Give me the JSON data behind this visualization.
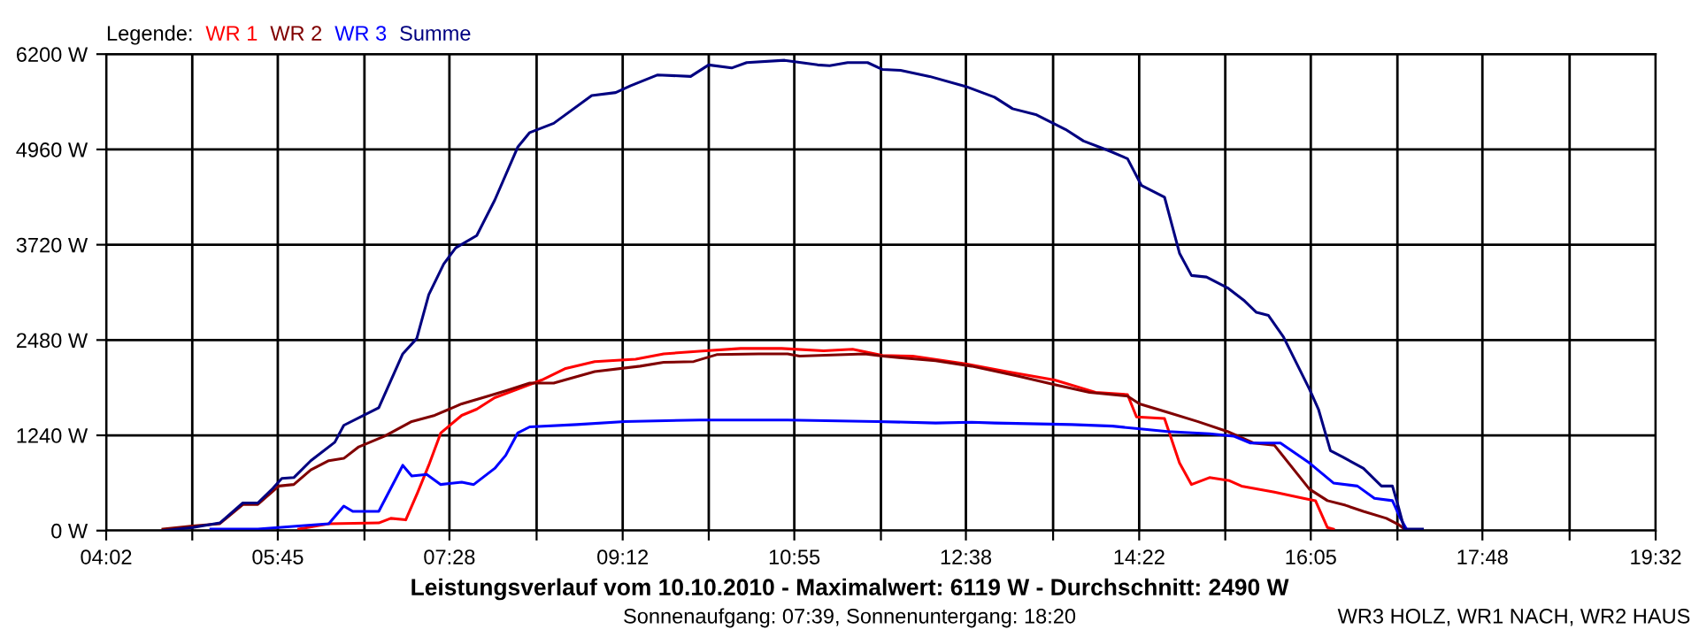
{
  "chart_data": {
    "type": "line",
    "title": "Leistungsverlauf vom 10.10.2010 - Maximalwert: 6119 W - Durchschnitt: 2490 W",
    "subtitle": "Sonnenaufgang: 07:39, Sonnenuntergang: 18:20",
    "legend_title": "Legende:",
    "annotations": [
      "WR3 HOLZ, WR1 NACH, WR2 HAUS"
    ],
    "legend": "top left",
    "grid": true,
    "marker": "none",
    "line_style": "solid",
    "xlim": [
      4.0333,
      19.5333
    ],
    "ylim": [
      0,
      6200
    ],
    "xticks": [
      {
        "value": 4.0333,
        "label": "04:02"
      },
      {
        "value": 4.8944,
        "label": null
      },
      {
        "value": 5.75,
        "label": "05:45"
      },
      {
        "value": 6.6167,
        "label": null
      },
      {
        "value": 7.4667,
        "label": "07:28"
      },
      {
        "value": 8.3389,
        "label": null
      },
      {
        "value": 9.2,
        "label": "09:12"
      },
      {
        "value": 10.0611,
        "label": null
      },
      {
        "value": 10.9167,
        "label": "10:55"
      },
      {
        "value": 11.7833,
        "label": null
      },
      {
        "value": 12.6333,
        "label": "12:38"
      },
      {
        "value": 13.5056,
        "label": null
      },
      {
        "value": 14.3667,
        "label": "14:22"
      },
      {
        "value": 15.2278,
        "label": null
      },
      {
        "value": 16.0833,
        "label": "16:05"
      },
      {
        "value": 16.95,
        "label": null
      },
      {
        "value": 17.8,
        "label": "17:48"
      },
      {
        "value": 18.6722,
        "label": null
      },
      {
        "value": 19.5333,
        "label": "19:32"
      }
    ],
    "yticks": [
      {
        "value": 0,
        "label": "0 W"
      },
      {
        "value": 1240,
        "label": "1240 W"
      },
      {
        "value": 2480,
        "label": "2480 W"
      },
      {
        "value": 3720,
        "label": "3720 W"
      },
      {
        "value": 4960,
        "label": "4960 W"
      },
      {
        "value": 6200,
        "label": "6200 W"
      }
    ],
    "series": [
      {
        "name": "WR 1",
        "color": "#ff0000",
        "x": [
          5.96,
          6.26,
          6.76,
          6.88,
          7.03,
          7.15,
          7.26,
          7.38,
          7.59,
          7.74,
          7.92,
          8.15,
          8.39,
          8.63,
          8.92,
          9.33,
          9.61,
          10.03,
          10.38,
          10.79,
          11.21,
          11.5,
          11.8,
          12.1,
          12.63,
          13.04,
          13.52,
          13.93,
          14.25,
          14.34,
          14.62,
          14.77,
          14.89,
          15.07,
          15.27,
          15.39,
          15.72,
          16.01,
          16.13,
          16.25,
          16.31
        ],
        "values": [
          20,
          90,
          100,
          160,
          140,
          500,
          850,
          1270,
          1500,
          1580,
          1730,
          1840,
          1960,
          2110,
          2200,
          2230,
          2300,
          2340,
          2370,
          2370,
          2340,
          2360,
          2280,
          2270,
          2170,
          2070,
          1960,
          1800,
          1770,
          1480,
          1460,
          880,
          600,
          690,
          650,
          580,
          500,
          420,
          390,
          40,
          20
        ]
      },
      {
        "name": "WR 2",
        "color": "#800000",
        "x": [
          4.6,
          4.9,
          5.17,
          5.4,
          5.55,
          5.76,
          5.91,
          6.08,
          6.26,
          6.41,
          6.56,
          6.82,
          7.09,
          7.32,
          7.59,
          7.8,
          8.03,
          8.27,
          8.51,
          8.92,
          9.375,
          9.61,
          9.91,
          10.14,
          10.56,
          10.85,
          10.97,
          11.62,
          11.8,
          12.33,
          12.69,
          13.16,
          13.52,
          13.87,
          14.25,
          14.37,
          14.65,
          14.95,
          15.25,
          15.51,
          15.72,
          16.07,
          16.25,
          16.43,
          16.61,
          16.84,
          16.96,
          17.02
        ],
        "values": [
          20,
          60,
          90,
          340,
          340,
          580,
          600,
          790,
          910,
          940,
          1090,
          1230,
          1420,
          1500,
          1650,
          1730,
          1820,
          1920,
          1920,
          2070,
          2140,
          2190,
          2200,
          2290,
          2300,
          2300,
          2270,
          2300,
          2270,
          2210,
          2140,
          2010,
          1900,
          1800,
          1750,
          1650,
          1540,
          1420,
          1290,
          1140,
          1110,
          540,
          390,
          330,
          250,
          160,
          80,
          20
        ]
      },
      {
        "name": "WR 3",
        "color": "#0000ff",
        "x": [
          5.08,
          5.55,
          5.96,
          6.26,
          6.41,
          6.5,
          6.76,
          7.0,
          7.09,
          7.24,
          7.38,
          7.59,
          7.71,
          7.92,
          8.03,
          8.15,
          8.27,
          8.74,
          9.22,
          9.97,
          10.85,
          11.74,
          12.33,
          12.69,
          12.92,
          13.69,
          14.1,
          14.4,
          14.65,
          15.07,
          15.31,
          15.48,
          15.78,
          16.07,
          16.31,
          16.55,
          16.72,
          16.9,
          16.98,
          17.04
        ],
        "values": [
          20,
          20,
          60,
          90,
          320,
          250,
          250,
          850,
          710,
          730,
          600,
          630,
          600,
          810,
          980,
          1270,
          1350,
          1380,
          1420,
          1440,
          1440,
          1420,
          1400,
          1410,
          1400,
          1380,
          1360,
          1320,
          1290,
          1260,
          1230,
          1140,
          1140,
          880,
          620,
          580,
          420,
          390,
          160,
          20
        ]
      },
      {
        "name": "Summe",
        "color": "#000080",
        "x": [
          4.6,
          4.9,
          5.17,
          5.4,
          5.55,
          5.7,
          5.79,
          5.91,
          6.08,
          6.32,
          6.41,
          6.61,
          6.76,
          7.0,
          7.14,
          7.26,
          7.41,
          7.53,
          7.74,
          7.92,
          8.15,
          8.27,
          8.51,
          8.89,
          9.13,
          9.28,
          9.55,
          9.88,
          10.06,
          10.29,
          10.44,
          10.82,
          11.15,
          11.27,
          11.45,
          11.65,
          11.8,
          11.98,
          12.27,
          12.63,
          12.92,
          13.1,
          13.34,
          13.63,
          13.81,
          14.05,
          14.25,
          14.39,
          14.62,
          14.77,
          14.89,
          15.04,
          15.25,
          15.42,
          15.54,
          15.66,
          15.81,
          16.07,
          16.16,
          16.28,
          16.4,
          16.61,
          16.79,
          16.9,
          16.96,
          17.02,
          17.2
        ],
        "values": [
          0,
          40,
          100,
          360,
          360,
          550,
          680,
          690,
          910,
          1150,
          1370,
          1500,
          1600,
          2300,
          2500,
          3070,
          3470,
          3680,
          3840,
          4300,
          4990,
          5180,
          5300,
          5660,
          5700,
          5790,
          5930,
          5910,
          6060,
          6020,
          6090,
          6120,
          6060,
          6050,
          6090,
          6090,
          6000,
          5990,
          5910,
          5780,
          5640,
          5490,
          5410,
          5220,
          5070,
          4950,
          4840,
          4490,
          4340,
          3610,
          3320,
          3300,
          3160,
          2990,
          2840,
          2800,
          2520,
          1840,
          1580,
          1040,
          960,
          810,
          580,
          580,
          310,
          20,
          20
        ]
      }
    ]
  }
}
